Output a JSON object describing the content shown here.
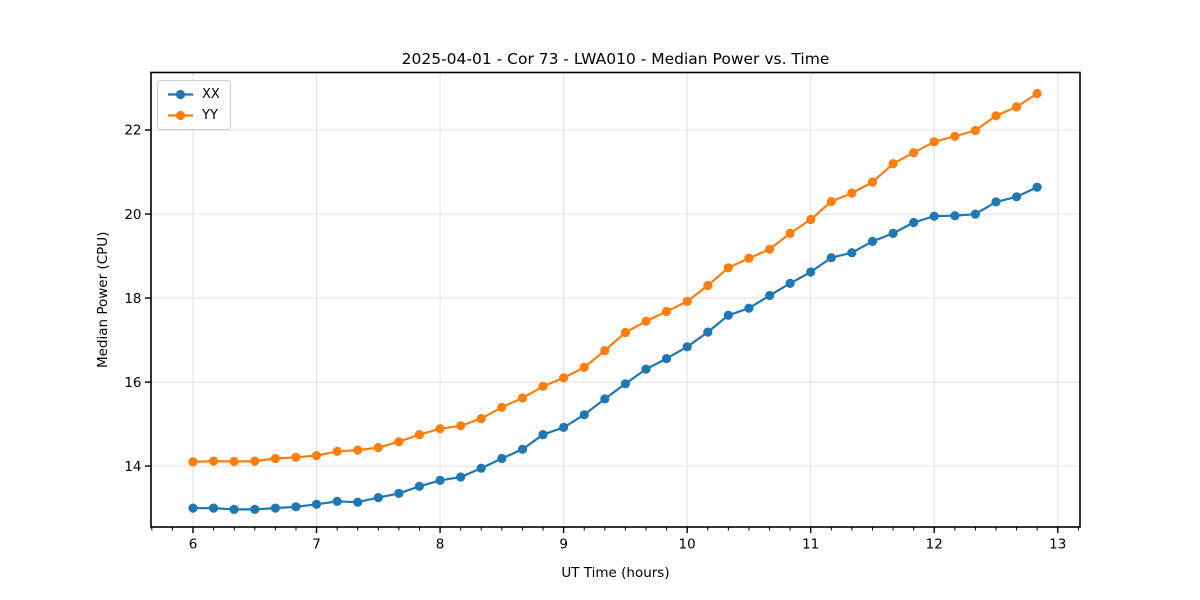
{
  "chart_data": {
    "type": "line",
    "title": "2025-04-01 - Cor 73 - LWA010 - Median Power vs. Time",
    "xlabel": "UT Time (hours)",
    "ylabel": "Median Power (CPU)",
    "xlim": [
      5.66,
      13.18
    ],
    "ylim": [
      12.55,
      23.37
    ],
    "xticks": [
      6,
      7,
      8,
      9,
      10,
      11,
      12,
      13
    ],
    "yticks": [
      14,
      16,
      18,
      20,
      22
    ],
    "x_minor_step": 0.16667,
    "grid": true,
    "grid_color": "#e0e0e0",
    "legend_position": "upper left",
    "x": [
      6.0,
      6.167,
      6.333,
      6.5,
      6.667,
      6.833,
      7.0,
      7.167,
      7.333,
      7.5,
      7.667,
      7.833,
      8.0,
      8.167,
      8.333,
      8.5,
      8.667,
      8.833,
      9.0,
      9.167,
      9.333,
      9.5,
      9.667,
      9.833,
      10.0,
      10.167,
      10.333,
      10.5,
      10.667,
      10.833,
      11.0,
      11.167,
      11.333,
      11.5,
      11.667,
      11.833,
      12.0,
      12.167,
      12.333,
      12.5,
      12.667,
      12.833
    ],
    "series": [
      {
        "name": "XX",
        "color": "#1f77b4",
        "marker": "circle",
        "values": [
          13.0,
          13.0,
          12.97,
          12.97,
          13.0,
          13.03,
          13.09,
          13.16,
          13.14,
          13.25,
          13.35,
          13.52,
          13.66,
          13.74,
          13.95,
          14.18,
          14.4,
          14.75,
          14.92,
          15.22,
          15.6,
          15.96,
          16.31,
          16.56,
          16.84,
          17.19,
          17.59,
          17.76,
          18.06,
          18.35,
          18.62,
          18.96,
          19.08,
          19.35,
          19.54,
          19.8,
          19.95,
          19.96,
          20.0,
          20.29,
          20.41,
          20.64
        ]
      },
      {
        "name": "YY",
        "color": "#ff7f0e",
        "marker": "circle",
        "values": [
          14.1,
          14.12,
          14.11,
          14.12,
          14.18,
          14.21,
          14.25,
          14.35,
          14.38,
          14.44,
          14.58,
          14.75,
          14.89,
          14.96,
          15.13,
          15.4,
          15.62,
          15.9,
          16.1,
          16.35,
          16.75,
          17.18,
          17.45,
          17.68,
          17.92,
          18.3,
          18.72,
          18.95,
          19.16,
          19.54,
          19.87,
          20.3,
          20.5,
          20.76,
          21.2,
          21.46,
          21.72,
          21.85,
          21.99,
          22.34,
          22.55,
          22.87
        ]
      }
    ]
  }
}
